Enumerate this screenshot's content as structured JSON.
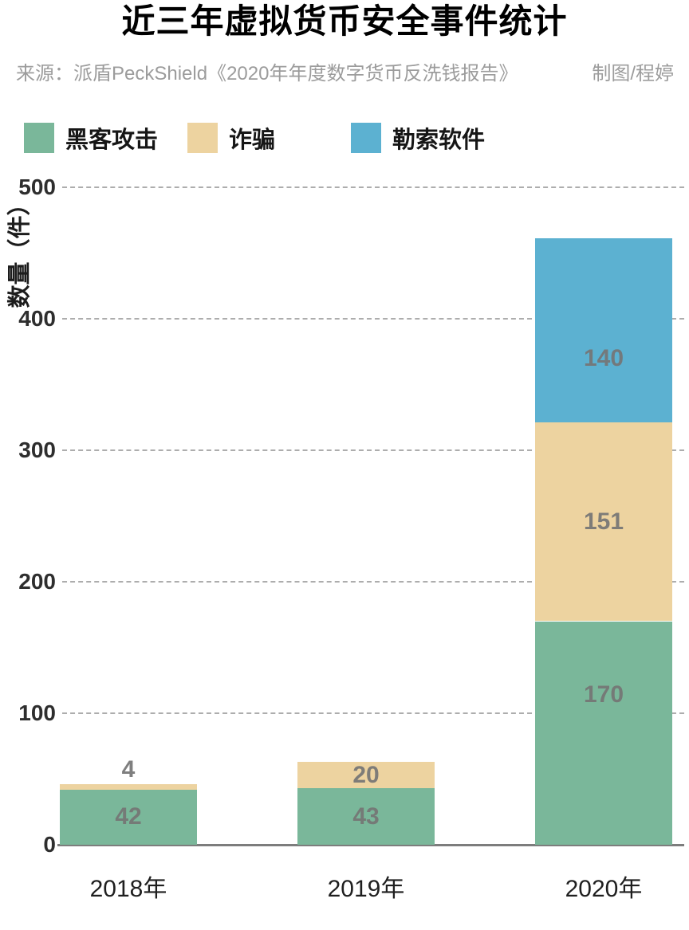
{
  "title": "近三年虚拟货币安全事件统计",
  "source": {
    "text": "来源：派盾PeckShield《2020年年度数字货币反洗钱报告》",
    "credit": "制图/程婷"
  },
  "colors": {
    "hacker_green": "#7ab79a",
    "scam_tan": "#edd3a0",
    "ransom_blue": "#5cb1d1",
    "gridline": "#adadad",
    "axis": "#7d7d7d",
    "value_label": "#757575",
    "tick_label": "#2e2e2e",
    "source_text": "#9c9c9c"
  },
  "chart_data": {
    "type": "bar",
    "stacked": true,
    "title": "近三年虚拟货币安全事件统计",
    "categories": [
      "2018年",
      "2019年",
      "2020年"
    ],
    "series": [
      {
        "name": "黑客攻击",
        "color": "#7ab79a",
        "values": [
          42,
          43,
          170
        ]
      },
      {
        "name": "诈骗",
        "color": "#edd3a0",
        "values": [
          4,
          20,
          151
        ]
      },
      {
        "name": "勒索软件",
        "color": "#5cb1d1",
        "values": [
          0,
          0,
          140
        ]
      }
    ],
    "totals": [
      46,
      63,
      461
    ],
    "xlabel": "",
    "ylabel": "数量（件）",
    "ylim": [
      0,
      500
    ],
    "yticks": [
      0,
      100,
      200,
      300,
      400,
      500
    ],
    "grid": "horizontal-dashed",
    "legend_position": "top-left",
    "value_label_layout": [
      [
        "center",
        "above",
        null
      ],
      [
        "center",
        "center",
        null
      ],
      [
        0.33,
        "center",
        0.65
      ]
    ]
  }
}
